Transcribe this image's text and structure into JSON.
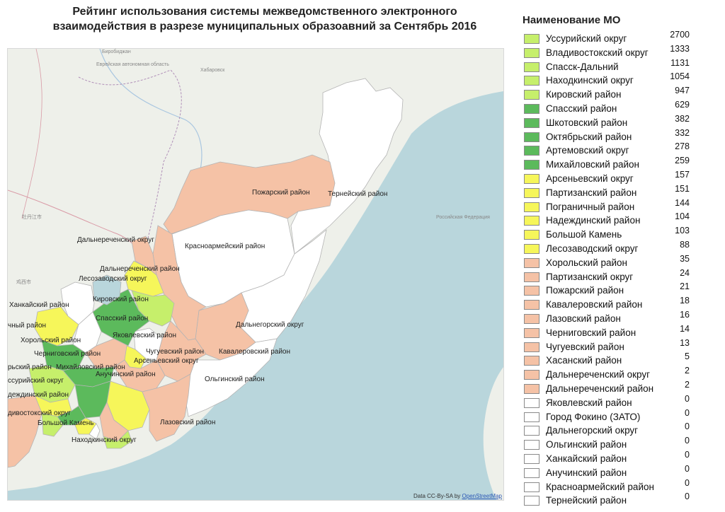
{
  "title_line1": "Рейтинг использования системы межведомственного электронного",
  "title_line2": "взаимодействия в разрезе муниципальных образоавний за Сентябрь 2016",
  "legend": {
    "heading": "Наименование МО",
    "items": [
      {
        "name": "Уссурийский округ",
        "value": "2700",
        "color": "#c6ef6b"
      },
      {
        "name": "Владивостокский округ",
        "value": "1333",
        "color": "#c6ef6b"
      },
      {
        "name": "Спасск-Дальний",
        "value": "1131",
        "color": "#c6ef6b"
      },
      {
        "name": "Находкинский округ",
        "value": "1054",
        "color": "#c6ef6b"
      },
      {
        "name": "Кировский район",
        "value": "947",
        "color": "#c6ef6b"
      },
      {
        "name": "Спасский район",
        "value": "629",
        "color": "#5cba5c"
      },
      {
        "name": "Шкотовский район",
        "value": "382",
        "color": "#5cba5c"
      },
      {
        "name": "Октябрьский район",
        "value": "332",
        "color": "#5cba5c"
      },
      {
        "name": "Артемовский округ",
        "value": "278",
        "color": "#5cba5c"
      },
      {
        "name": "Михайловский район",
        "value": "259",
        "color": "#5cba5c"
      },
      {
        "name": "Арсеньевский округ",
        "value": "157",
        "color": "#f6f65a"
      },
      {
        "name": "Партизанский район",
        "value": "151",
        "color": "#f6f65a"
      },
      {
        "name": "Пограничный район",
        "value": "144",
        "color": "#f6f65a"
      },
      {
        "name": "Надеждинский район",
        "value": "104",
        "color": "#f6f65a"
      },
      {
        "name": "Большой Камень",
        "value": "103",
        "color": "#f6f65a"
      },
      {
        "name": "Лесозаводский округ",
        "value": "88",
        "color": "#f6f65a"
      },
      {
        "name": "Хорольский район",
        "value": "35",
        "color": "#f5c2a6"
      },
      {
        "name": "Партизанский округ",
        "value": "24",
        "color": "#f5c2a6"
      },
      {
        "name": "Пожарский район",
        "value": "21",
        "color": "#f5c2a6"
      },
      {
        "name": "Кавалеровский район",
        "value": "18",
        "color": "#f5c2a6"
      },
      {
        "name": "Лазовский район",
        "value": "16",
        "color": "#f5c2a6"
      },
      {
        "name": "Черниговский район",
        "value": "14",
        "color": "#f5c2a6"
      },
      {
        "name": "Чугуевский район",
        "value": "13",
        "color": "#f5c2a6"
      },
      {
        "name": "Хасанский район",
        "value": "5",
        "color": "#f5c2a6"
      },
      {
        "name": "Дальнереченский округ",
        "value": "2",
        "color": "#f5c2a6"
      },
      {
        "name": "Дальнереченский район",
        "value": "2",
        "color": "#f5c2a6"
      },
      {
        "name": "Яковлевский район",
        "value": "0",
        "color": "#ffffff"
      },
      {
        "name": "Город Фокино (ЗАТО)",
        "value": "0",
        "color": "#ffffff"
      },
      {
        "name": "Дальнегорский округ",
        "value": "0",
        "color": "#ffffff"
      },
      {
        "name": "Ольгинский район",
        "value": "0",
        "color": "#ffffff"
      },
      {
        "name": "Ханкайский район",
        "value": "0",
        "color": "#ffffff"
      },
      {
        "name": "Анучинский район",
        "value": "0",
        "color": "#ffffff"
      },
      {
        "name": "Красноармейский район",
        "value": "0",
        "color": "#ffffff"
      },
      {
        "name": "Тернейский район",
        "value": "0",
        "color": "#ffffff"
      }
    ]
  },
  "map": {
    "labels": {
      "pozharsky": "Пожарский район",
      "terneysky": "Тернейский район",
      "krasnoarmeysky": "Красноармейский район",
      "dalnerechensky_okrug": "Дальнереченский округ",
      "dalnerechensky_rayon": "Дальнереченский район",
      "lesozavodsky": "Лесозаводский округ",
      "khankaysky": "Ханкайский район",
      "kirovsky": "Кировский район",
      "spassky": "Спасский район",
      "yakovlevsky": "Яковлевский район",
      "dalnegorsky": "Дальнегорский округ",
      "pogranichny": "чный район",
      "khorolsky": "Хорольский район",
      "chernigovsky": "Черниговский район",
      "chuguevsky": "Чугуевский район",
      "kavalerovsky": "Кавалеровский район",
      "oktyabrsky": "рьский район",
      "mikhaylovsky": "Михайловский район",
      "arsenyevsky": "Арсеньевский округ",
      "anuchinsky": "Анучинский район",
      "olginsky": "Ольгинский район",
      "ussuriysky": "ссурийский округ",
      "nadezhdinsky": "деждинский район",
      "vladivostoksky": "дивостокский округ",
      "bolshoy_kamen": "Большой Камень",
      "nakhodkinsky": "Находкинский округ",
      "lazovsky": "Лазовский район"
    },
    "background_labels": {
      "birobidzhan": "Биробиджан",
      "jewish_ao": "Еврейская автономная область",
      "khabarovsk": "Хабаровск",
      "russia": "Российская Федерация",
      "jixi": "鸡西市",
      "mudanjiang": "牡丹江市"
    },
    "attribution_text": "Data CC-By-SA by",
    "attribution_link": "OpenStreetMap",
    "colors": {
      "sea": "#b9d6dc",
      "land": "#eef0ea",
      "white_region": "#ffffff",
      "peach": "#f5c2a6",
      "yellow": "#f6f65a",
      "light_green": "#c6ef6b",
      "green": "#5cba5c"
    }
  }
}
